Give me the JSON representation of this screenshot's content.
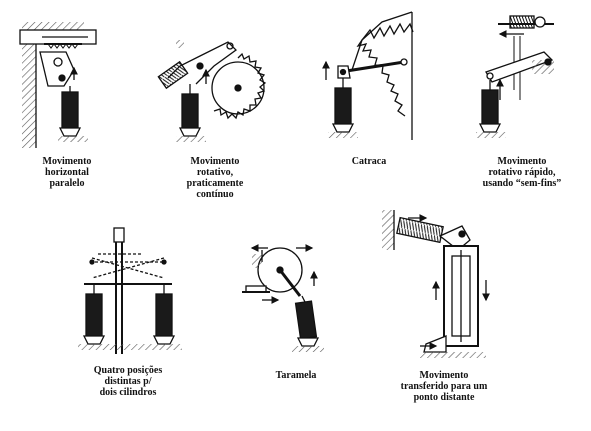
{
  "captions": {
    "horizontal_parallel": "Movimento\nhorizontal\nparalelo",
    "rotary_continuous": "Movimento\nrotativo,\npraticamente\ncontínuo",
    "ratchet": "Catraca",
    "fast_rotary": "Movimento\nrotativo rápido,\nusando “sem-fins”",
    "four_positions": "Quatro posições\ndistintas p/\ndois cilindros",
    "latch": "Taramela",
    "remote_transfer": "Movimento\ntransferido para um\nponto distante"
  },
  "colors": {
    "ink": "#111111",
    "cylinder": "#1a1a1a",
    "hatch": "#555555",
    "background": "#ffffff"
  }
}
